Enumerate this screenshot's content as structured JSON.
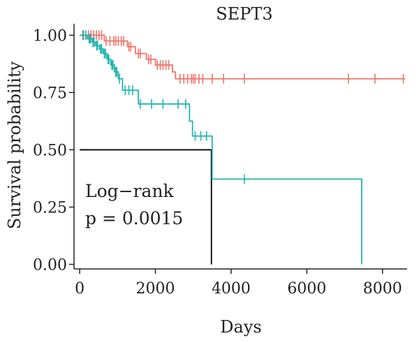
{
  "chart_data": {
    "type": "line",
    "subtype": "kaplan-meier",
    "title": "SEPT3",
    "xlabel": "Days",
    "ylabel": "Survival probability",
    "xlim": [
      -150,
      8650
    ],
    "ylim": [
      -0.02,
      1.05
    ],
    "xticks": [
      0,
      2000,
      4000,
      6000,
      8000
    ],
    "yticks": [
      0.0,
      0.25,
      0.5,
      0.75,
      1.0
    ],
    "ytick_labels": [
      "0.00",
      "0.25",
      "0.50",
      "0.75",
      "1.00"
    ],
    "grid": false,
    "legend": "none",
    "annotation": {
      "line1": "Log−rank",
      "line2": "p = 0.0015"
    },
    "median_line": {
      "y": 0.5,
      "x_start": 0,
      "x_end": 3480,
      "color": "#000000"
    },
    "series": [
      {
        "color": "#f0736a",
        "steps": [
          [
            0,
            1.0
          ],
          [
            600,
            1.0
          ],
          [
            650,
            0.975
          ],
          [
            1200,
            0.975
          ],
          [
            1260,
            0.95
          ],
          [
            1420,
            0.95
          ],
          [
            1470,
            0.92
          ],
          [
            1700,
            0.92
          ],
          [
            1760,
            0.895
          ],
          [
            1980,
            0.895
          ],
          [
            2000,
            0.87
          ],
          [
            2400,
            0.87
          ],
          [
            2450,
            0.84
          ],
          [
            2480,
            0.84
          ],
          [
            2530,
            0.81
          ],
          [
            8600,
            0.81
          ]
        ],
        "censors": [
          [
            80,
            1.0
          ],
          [
            160,
            1.0
          ],
          [
            230,
            1.0
          ],
          [
            300,
            1.0
          ],
          [
            370,
            1.0
          ],
          [
            440,
            1.0
          ],
          [
            510,
            1.0
          ],
          [
            580,
            1.0
          ],
          [
            700,
            0.975
          ],
          [
            800,
            0.975
          ],
          [
            900,
            0.975
          ],
          [
            950,
            0.975
          ],
          [
            1020,
            0.975
          ],
          [
            1100,
            0.975
          ],
          [
            1160,
            0.975
          ],
          [
            1300,
            0.95
          ],
          [
            1350,
            0.95
          ],
          [
            1550,
            0.92
          ],
          [
            1600,
            0.92
          ],
          [
            1820,
            0.895
          ],
          [
            1880,
            0.895
          ],
          [
            2050,
            0.87
          ],
          [
            2130,
            0.87
          ],
          [
            2200,
            0.87
          ],
          [
            2280,
            0.87
          ],
          [
            2350,
            0.87
          ],
          [
            2650,
            0.81
          ],
          [
            2750,
            0.81
          ],
          [
            2850,
            0.81
          ],
          [
            2950,
            0.81
          ],
          [
            3000,
            0.81
          ],
          [
            3050,
            0.81
          ],
          [
            3150,
            0.81
          ],
          [
            3250,
            0.81
          ],
          [
            3500,
            0.81
          ],
          [
            3800,
            0.81
          ],
          [
            4350,
            0.81
          ],
          [
            7100,
            0.81
          ],
          [
            7800,
            0.81
          ],
          [
            8550,
            0.81
          ]
        ]
      },
      {
        "color": "#23b5b0",
        "steps": [
          [
            0,
            1.0
          ],
          [
            180,
            1.0
          ],
          [
            200,
            0.985
          ],
          [
            300,
            0.985
          ],
          [
            320,
            0.97
          ],
          [
            400,
            0.97
          ],
          [
            420,
            0.955
          ],
          [
            500,
            0.955
          ],
          [
            520,
            0.94
          ],
          [
            600,
            0.94
          ],
          [
            620,
            0.92
          ],
          [
            700,
            0.92
          ],
          [
            720,
            0.895
          ],
          [
            800,
            0.895
          ],
          [
            820,
            0.87
          ],
          [
            900,
            0.87
          ],
          [
            920,
            0.84
          ],
          [
            1000,
            0.84
          ],
          [
            1020,
            0.81
          ],
          [
            1100,
            0.81
          ],
          [
            1130,
            0.76
          ],
          [
            1500,
            0.76
          ],
          [
            1550,
            0.7
          ],
          [
            2850,
            0.7
          ],
          [
            2900,
            0.625
          ],
          [
            2950,
            0.625
          ],
          [
            2980,
            0.56
          ],
          [
            3480,
            0.56
          ],
          [
            3500,
            0.372
          ],
          [
            7450,
            0.372
          ],
          [
            7450,
            0.0
          ]
        ],
        "censors": [
          [
            100,
            1.0
          ],
          [
            160,
            1.0
          ],
          [
            250,
            0.985
          ],
          [
            280,
            0.985
          ],
          [
            350,
            0.97
          ],
          [
            380,
            0.97
          ],
          [
            450,
            0.955
          ],
          [
            470,
            0.955
          ],
          [
            550,
            0.94
          ],
          [
            580,
            0.94
          ],
          [
            650,
            0.92
          ],
          [
            680,
            0.92
          ],
          [
            750,
            0.895
          ],
          [
            770,
            0.895
          ],
          [
            850,
            0.87
          ],
          [
            880,
            0.87
          ],
          [
            950,
            0.84
          ],
          [
            980,
            0.84
          ],
          [
            1050,
            0.81
          ],
          [
            1200,
            0.76
          ],
          [
            1300,
            0.76
          ],
          [
            1400,
            0.76
          ],
          [
            1600,
            0.7
          ],
          [
            1900,
            0.7
          ],
          [
            2200,
            0.7
          ],
          [
            2600,
            0.7
          ],
          [
            2800,
            0.7
          ],
          [
            3050,
            0.56
          ],
          [
            3200,
            0.56
          ],
          [
            3350,
            0.56
          ],
          [
            4350,
            0.372
          ]
        ]
      }
    ]
  }
}
